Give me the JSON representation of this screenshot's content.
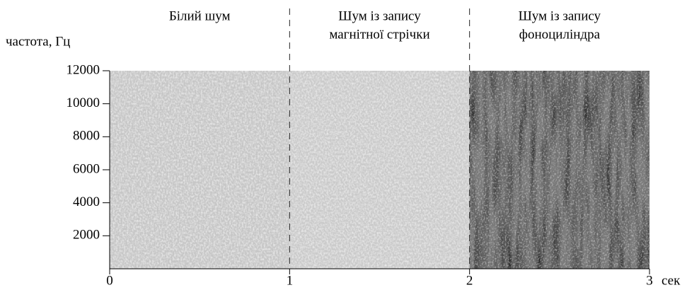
{
  "chart_data": {
    "type": "spectrogram",
    "ylabel": "частота, Гц",
    "xlabel": "сек",
    "xlim": [
      0,
      3
    ],
    "ylim": [
      0,
      12000
    ],
    "xticks": [
      0,
      1,
      2,
      3
    ],
    "yticks": [
      2000,
      4000,
      6000,
      8000,
      10000,
      12000
    ],
    "dividers": [
      1,
      2
    ],
    "regions": [
      {
        "lines": [
          "Білий шум"
        ],
        "x": [
          0,
          1
        ],
        "color": "#c6c6c6"
      },
      {
        "lines": [
          "Шум із запису",
          "магнітної стрічки"
        ],
        "x": [
          1,
          2
        ],
        "color": "#cacaca"
      },
      {
        "lines": [
          "Шум із запису",
          "фоноциліндра"
        ],
        "x": [
          2,
          3
        ],
        "color": "#7a7a7a"
      }
    ]
  }
}
